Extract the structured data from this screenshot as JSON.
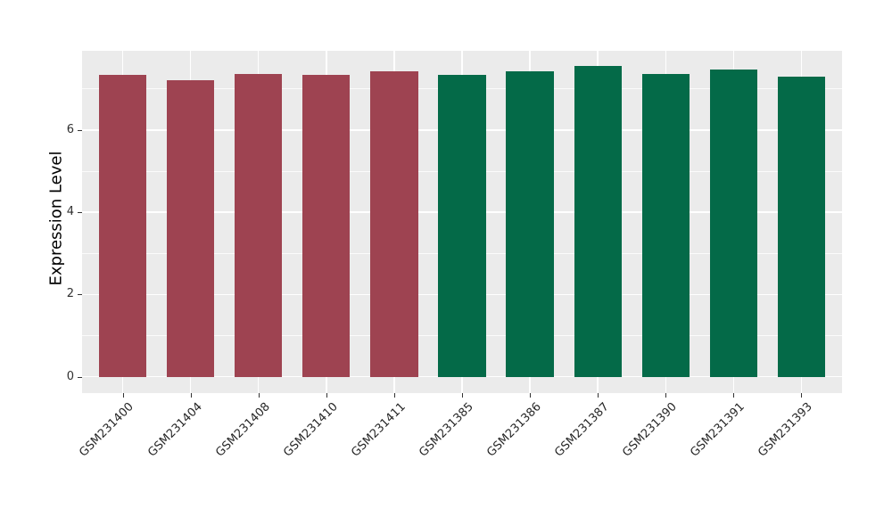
{
  "chart_data": {
    "type": "bar",
    "title": "",
    "xlabel": "",
    "ylabel": "Expression Level",
    "categories": [
      "GSM231400",
      "GSM231404",
      "GSM231408",
      "GSM231410",
      "GSM231411",
      "GSM231385",
      "GSM231386",
      "GSM231387",
      "GSM231390",
      "GSM231391",
      "GSM231393"
    ],
    "values": [
      7.35,
      7.22,
      7.36,
      7.35,
      7.44,
      7.34,
      7.44,
      7.56,
      7.36,
      7.48,
      7.31
    ],
    "bar_colors": [
      "#9E4351",
      "#9E4351",
      "#9E4351",
      "#9E4351",
      "#9E4351",
      "#046A48",
      "#046A48",
      "#046A48",
      "#046A48",
      "#046A48",
      "#046A48"
    ],
    "group_colors": {
      "left_group": "#9E4351",
      "right_group": "#046A48"
    },
    "yticks": [
      0,
      2,
      4,
      6
    ],
    "minor_yticks": [
      1,
      3,
      5,
      7
    ],
    "ylim": [
      -0.4,
      7.93
    ],
    "bar_width_ratio": 0.7,
    "panel_background": "#EBEBEB",
    "grid_color": "#FFFFFF",
    "grid": "on",
    "legend_position": "none"
  }
}
